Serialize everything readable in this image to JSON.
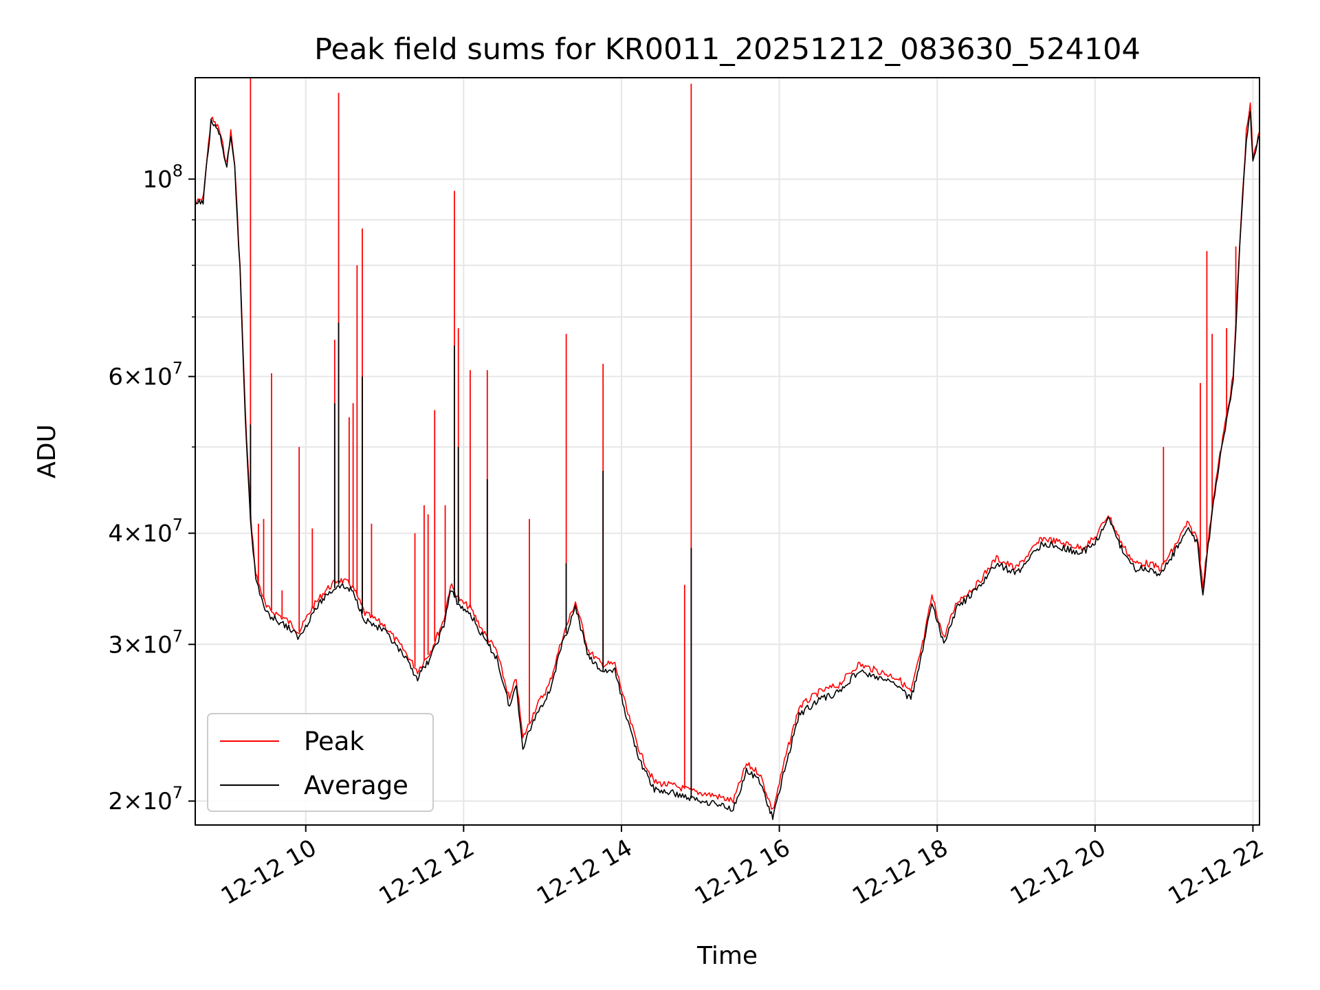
{
  "chart_data": {
    "type": "line",
    "title": "Peak field sums for KR0011_20251212_083630_524104",
    "xlabel": "Time",
    "ylabel": "ADU",
    "y_scale": "log",
    "xlim": [
      "2025-12-12 08:36",
      "2025-12-12 22:05"
    ],
    "ylim": [
      18800000,
      130000000
    ],
    "x_ticks": [
      {
        "t": "2025-12-12 10:00",
        "label": "12-12 10"
      },
      {
        "t": "2025-12-12 12:00",
        "label": "12-12 12"
      },
      {
        "t": "2025-12-12 14:00",
        "label": "12-12 14"
      },
      {
        "t": "2025-12-12 16:00",
        "label": "12-12 16"
      },
      {
        "t": "2025-12-12 18:00",
        "label": "12-12 18"
      },
      {
        "t": "2025-12-12 20:00",
        "label": "12-12 20"
      },
      {
        "t": "2025-12-12 22:00",
        "label": "12-12 22"
      }
    ],
    "y_ticks": [
      {
        "value": 20000000,
        "base": "2",
        "exp": "7"
      },
      {
        "value": 30000000,
        "base": "3",
        "exp": "7"
      },
      {
        "value": 40000000,
        "base": "4",
        "exp": "7"
      },
      {
        "value": 60000000,
        "base": "6",
        "exp": "7"
      },
      {
        "value": 100000000,
        "base": "10",
        "exp": "8"
      }
    ],
    "grid": true,
    "legend_position": "lower-left",
    "series": [
      {
        "name": "Peak",
        "color": "#ff0000",
        "points": [
          [
            "2025-12-12 08:36",
            94000000
          ],
          [
            "2025-12-12 08:42",
            95000000
          ],
          [
            "2025-12-12 08:48",
            117000000
          ],
          [
            "2025-12-12 08:54",
            114000000
          ],
          [
            "2025-12-12 09:00",
            104000000
          ],
          [
            "2025-12-12 09:03",
            113000000
          ],
          [
            "2025-12-12 09:06",
            104000000
          ],
          [
            "2025-12-12 09:10",
            80000000
          ],
          [
            "2025-12-12 09:14",
            55000000
          ],
          [
            "2025-12-12 09:18",
            42000000
          ],
          [
            "2025-12-12 09:22",
            36000000
          ],
          [
            "2025-12-12 09:30",
            33000000
          ],
          [
            "2025-12-12 09:45",
            32000000
          ],
          [
            "2025-12-12 09:55",
            31000000
          ],
          [
            "2025-12-12 10:05",
            33000000
          ],
          [
            "2025-12-12 10:15",
            34500000
          ],
          [
            "2025-12-12 10:25",
            35500000
          ],
          [
            "2025-12-12 10:35",
            35000000
          ],
          [
            "2025-12-12 10:45",
            32500000
          ],
          [
            "2025-12-12 11:00",
            31500000
          ],
          [
            "2025-12-12 11:15",
            29500000
          ],
          [
            "2025-12-12 11:25",
            28000000
          ],
          [
            "2025-12-12 11:35",
            29500000
          ],
          [
            "2025-12-12 11:45",
            32000000
          ],
          [
            "2025-12-12 11:50",
            35000000
          ],
          [
            "2025-12-12 11:58",
            33500000
          ],
          [
            "2025-12-12 12:05",
            33000000
          ],
          [
            "2025-12-12 12:15",
            31000000
          ],
          [
            "2025-12-12 12:25",
            29500000
          ],
          [
            "2025-12-12 12:35",
            26000000
          ],
          [
            "2025-12-12 12:40",
            27500000
          ],
          [
            "2025-12-12 12:45",
            23500000
          ],
          [
            "2025-12-12 12:55",
            25500000
          ],
          [
            "2025-12-12 13:05",
            27000000
          ],
          [
            "2025-12-12 13:15",
            30500000
          ],
          [
            "2025-12-12 13:25",
            33500000
          ],
          [
            "2025-12-12 13:35",
            29500000
          ],
          [
            "2025-12-12 13:45",
            28500000
          ],
          [
            "2025-12-12 13:55",
            28500000
          ],
          [
            "2025-12-12 14:05",
            25000000
          ],
          [
            "2025-12-12 14:15",
            22500000
          ],
          [
            "2025-12-12 14:25",
            21000000
          ],
          [
            "2025-12-12 14:40",
            20800000
          ],
          [
            "2025-12-12 14:55",
            20500000
          ],
          [
            "2025-12-12 15:10",
            20300000
          ],
          [
            "2025-12-12 15:25",
            20000000
          ],
          [
            "2025-12-12 15:35",
            22000000
          ],
          [
            "2025-12-12 15:45",
            21500000
          ],
          [
            "2025-12-12 15:55",
            19500000
          ],
          [
            "2025-12-12 16:05",
            22500000
          ],
          [
            "2025-12-12 16:15",
            25500000
          ],
          [
            "2025-12-12 16:30",
            26500000
          ],
          [
            "2025-12-12 16:45",
            27000000
          ],
          [
            "2025-12-12 17:00",
            28500000
          ],
          [
            "2025-12-12 17:15",
            28000000
          ],
          [
            "2025-12-12 17:30",
            27500000
          ],
          [
            "2025-12-12 17:40",
            26500000
          ],
          [
            "2025-12-12 17:50",
            30500000
          ],
          [
            "2025-12-12 17:56",
            34000000
          ],
          [
            "2025-12-12 18:05",
            30500000
          ],
          [
            "2025-12-12 18:15",
            33500000
          ],
          [
            "2025-12-12 18:30",
            35000000
          ],
          [
            "2025-12-12 18:45",
            37500000
          ],
          [
            "2025-12-12 19:00",
            36500000
          ],
          [
            "2025-12-12 19:10",
            38000000
          ],
          [
            "2025-12-12 19:20",
            39500000
          ],
          [
            "2025-12-12 19:35",
            39000000
          ],
          [
            "2025-12-12 19:50",
            38500000
          ],
          [
            "2025-12-12 20:00",
            39500000
          ],
          [
            "2025-12-12 20:10",
            42000000
          ],
          [
            "2025-12-12 20:20",
            39000000
          ],
          [
            "2025-12-12 20:30",
            37000000
          ],
          [
            "2025-12-12 20:40",
            37000000
          ],
          [
            "2025-12-12 20:50",
            36500000
          ],
          [
            "2025-12-12 21:00",
            38500000
          ],
          [
            "2025-12-12 21:10",
            41000000
          ],
          [
            "2025-12-12 21:18",
            39500000
          ],
          [
            "2025-12-12 21:22",
            35000000
          ],
          [
            "2025-12-12 21:25",
            38000000
          ],
          [
            "2025-12-12 21:30",
            44000000
          ],
          [
            "2025-12-12 21:35",
            49000000
          ],
          [
            "2025-12-12 21:45",
            60000000
          ],
          [
            "2025-12-12 21:50",
            85000000
          ],
          [
            "2025-12-12 21:55",
            113000000
          ],
          [
            "2025-12-12 21:58",
            122000000
          ],
          [
            "2025-12-12 22:00",
            105000000
          ],
          [
            "2025-12-12 22:05",
            113000000
          ]
        ],
        "spikes": [
          [
            "2025-12-12 09:18",
            130000000
          ],
          [
            "2025-12-12 09:24",
            41000000
          ],
          [
            "2025-12-12 09:28",
            41500000
          ],
          [
            "2025-12-12 09:34",
            60500000
          ],
          [
            "2025-12-12 09:42",
            34500000
          ],
          [
            "2025-12-12 09:55",
            50000000
          ],
          [
            "2025-12-12 10:05",
            40500000
          ],
          [
            "2025-12-12 10:22",
            66000000
          ],
          [
            "2025-12-12 10:25",
            125000000
          ],
          [
            "2025-12-12 10:33",
            54000000
          ],
          [
            "2025-12-12 10:36",
            56000000
          ],
          [
            "2025-12-12 10:39",
            80000000
          ],
          [
            "2025-12-12 10:43",
            88000000
          ],
          [
            "2025-12-12 10:50",
            41000000
          ],
          [
            "2025-12-12 11:23",
            40000000
          ],
          [
            "2025-12-12 11:30",
            43000000
          ],
          [
            "2025-12-12 11:33",
            42000000
          ],
          [
            "2025-12-12 11:38",
            55000000
          ],
          [
            "2025-12-12 11:46",
            43000000
          ],
          [
            "2025-12-12 11:53",
            97000000
          ],
          [
            "2025-12-12 11:56",
            68000000
          ],
          [
            "2025-12-12 12:05",
            61000000
          ],
          [
            "2025-12-12 12:18",
            61000000
          ],
          [
            "2025-12-12 12:50",
            41500000
          ],
          [
            "2025-12-12 13:18",
            67000000
          ],
          [
            "2025-12-12 13:46",
            62000000
          ],
          [
            "2025-12-12 14:48",
            35000000
          ],
          [
            "2025-12-12 14:53",
            128000000
          ],
          [
            "2025-12-12 20:52",
            50000000
          ],
          [
            "2025-12-12 21:20",
            59000000
          ],
          [
            "2025-12-12 21:25",
            83000000
          ],
          [
            "2025-12-12 21:29",
            67000000
          ],
          [
            "2025-12-12 21:40",
            68000000
          ],
          [
            "2025-12-12 21:47",
            84000000
          ]
        ]
      },
      {
        "name": "Average",
        "color": "#000000",
        "points": [
          [
            "2025-12-12 08:36",
            93500000
          ],
          [
            "2025-12-12 08:42",
            94500000
          ],
          [
            "2025-12-12 08:48",
            116000000
          ],
          [
            "2025-12-12 08:54",
            113000000
          ],
          [
            "2025-12-12 09:00",
            103000000
          ],
          [
            "2025-12-12 09:03",
            111000000
          ],
          [
            "2025-12-12 09:06",
            103000000
          ],
          [
            "2025-12-12 09:10",
            79000000
          ],
          [
            "2025-12-12 09:14",
            54000000
          ],
          [
            "2025-12-12 09:18",
            41500000
          ],
          [
            "2025-12-12 09:22",
            35500000
          ],
          [
            "2025-12-12 09:30",
            32500000
          ],
          [
            "2025-12-12 09:45",
            31500000
          ],
          [
            "2025-12-12 09:55",
            30500000
          ],
          [
            "2025-12-12 10:05",
            32500000
          ],
          [
            "2025-12-12 10:15",
            34000000
          ],
          [
            "2025-12-12 10:25",
            35000000
          ],
          [
            "2025-12-12 10:35",
            34500000
          ],
          [
            "2025-12-12 10:45",
            32000000
          ],
          [
            "2025-12-12 11:00",
            31000000
          ],
          [
            "2025-12-12 11:15",
            29000000
          ],
          [
            "2025-12-12 11:25",
            27500000
          ],
          [
            "2025-12-12 11:35",
            29000000
          ],
          [
            "2025-12-12 11:45",
            31500000
          ],
          [
            "2025-12-12 11:50",
            34500000
          ],
          [
            "2025-12-12 11:58",
            33000000
          ],
          [
            "2025-12-12 12:05",
            32500000
          ],
          [
            "2025-12-12 12:15",
            30500000
          ],
          [
            "2025-12-12 12:25",
            29000000
          ],
          [
            "2025-12-12 12:35",
            25500000
          ],
          [
            "2025-12-12 12:40",
            27000000
          ],
          [
            "2025-12-12 12:45",
            23000000
          ],
          [
            "2025-12-12 12:55",
            25000000
          ],
          [
            "2025-12-12 13:05",
            26500000
          ],
          [
            "2025-12-12 13:15",
            30000000
          ],
          [
            "2025-12-12 13:25",
            33000000
          ],
          [
            "2025-12-12 13:35",
            29000000
          ],
          [
            "2025-12-12 13:45",
            28000000
          ],
          [
            "2025-12-12 13:55",
            28000000
          ],
          [
            "2025-12-12 14:05",
            24500000
          ],
          [
            "2025-12-12 14:15",
            22000000
          ],
          [
            "2025-12-12 14:25",
            20600000
          ],
          [
            "2025-12-12 14:40",
            20400000
          ],
          [
            "2025-12-12 14:55",
            20100000
          ],
          [
            "2025-12-12 15:10",
            19900000
          ],
          [
            "2025-12-12 15:25",
            19600000
          ],
          [
            "2025-12-12 15:35",
            21600000
          ],
          [
            "2025-12-12 15:45",
            21100000
          ],
          [
            "2025-12-12 15:55",
            19100000
          ],
          [
            "2025-12-12 16:05",
            22000000
          ],
          [
            "2025-12-12 16:15",
            25000000
          ],
          [
            "2025-12-12 16:30",
            26000000
          ],
          [
            "2025-12-12 16:45",
            26500000
          ],
          [
            "2025-12-12 17:00",
            28000000
          ],
          [
            "2025-12-12 17:15",
            27500000
          ],
          [
            "2025-12-12 17:30",
            27000000
          ],
          [
            "2025-12-12 17:40",
            26000000
          ],
          [
            "2025-12-12 17:50",
            30000000
          ],
          [
            "2025-12-12 17:56",
            33500000
          ],
          [
            "2025-12-12 18:05",
            30000000
          ],
          [
            "2025-12-12 18:15",
            33000000
          ],
          [
            "2025-12-12 18:30",
            34500000
          ],
          [
            "2025-12-12 18:45",
            37000000
          ],
          [
            "2025-12-12 19:00",
            36000000
          ],
          [
            "2025-12-12 19:10",
            37500000
          ],
          [
            "2025-12-12 19:20",
            39000000
          ],
          [
            "2025-12-12 19:35",
            38500000
          ],
          [
            "2025-12-12 19:50",
            38000000
          ],
          [
            "2025-12-12 20:00",
            39000000
          ],
          [
            "2025-12-12 20:10",
            41500000
          ],
          [
            "2025-12-12 20:20",
            38500000
          ],
          [
            "2025-12-12 20:30",
            36500000
          ],
          [
            "2025-12-12 20:40",
            36500000
          ],
          [
            "2025-12-12 20:50",
            36000000
          ],
          [
            "2025-12-12 21:00",
            38000000
          ],
          [
            "2025-12-12 21:10",
            40500000
          ],
          [
            "2025-12-12 21:18",
            39000000
          ],
          [
            "2025-12-12 21:22",
            34000000
          ],
          [
            "2025-12-12 21:25",
            37500000
          ],
          [
            "2025-12-12 21:30",
            43500000
          ],
          [
            "2025-12-12 21:35",
            48500000
          ],
          [
            "2025-12-12 21:45",
            59000000
          ],
          [
            "2025-12-12 21:50",
            84000000
          ],
          [
            "2025-12-12 21:55",
            111000000
          ],
          [
            "2025-12-12 21:58",
            120000000
          ],
          [
            "2025-12-12 22:00",
            104000000
          ],
          [
            "2025-12-12 22:05",
            112000000
          ]
        ],
        "spikes": [
          [
            "2025-12-12 09:18",
            53000000
          ],
          [
            "2025-12-12 10:22",
            56000000
          ],
          [
            "2025-12-12 10:25",
            69000000
          ],
          [
            "2025-12-12 10:43",
            60000000
          ],
          [
            "2025-12-12 11:53",
            65000000
          ],
          [
            "2025-12-12 11:56",
            50000000
          ],
          [
            "2025-12-12 12:18",
            46000000
          ],
          [
            "2025-12-12 13:18",
            37000000
          ],
          [
            "2025-12-12 13:46",
            47000000
          ],
          [
            "2025-12-12 14:53",
            38500000
          ]
        ]
      }
    ]
  }
}
